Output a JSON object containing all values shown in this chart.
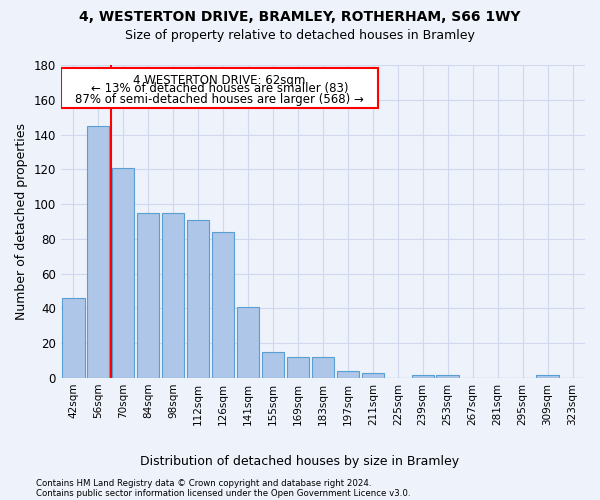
{
  "title_line1": "4, WESTERTON DRIVE, BRAMLEY, ROTHERHAM, S66 1WY",
  "title_line2": "Size of property relative to detached houses in Bramley",
  "xlabel": "Distribution of detached houses by size in Bramley",
  "ylabel": "Number of detached properties",
  "bar_color": "#aec6e8",
  "bar_edge_color": "#5a9fd4",
  "categories": [
    "42sqm",
    "56sqm",
    "70sqm",
    "84sqm",
    "98sqm",
    "112sqm",
    "126sqm",
    "141sqm",
    "155sqm",
    "169sqm",
    "183sqm",
    "197sqm",
    "211sqm",
    "225sqm",
    "239sqm",
    "253sqm",
    "267sqm",
    "281sqm",
    "295sqm",
    "309sqm",
    "323sqm"
  ],
  "values": [
    46,
    145,
    121,
    95,
    95,
    91,
    84,
    41,
    15,
    12,
    12,
    4,
    3,
    0,
    2,
    2,
    0,
    0,
    0,
    2,
    0
  ],
  "ylim": [
    0,
    180
  ],
  "yticks": [
    0,
    20,
    40,
    60,
    80,
    100,
    120,
    140,
    160,
    180
  ],
  "annotation_text_line1": "4 WESTERTON DRIVE: 62sqm",
  "annotation_text_line2": "← 13% of detached houses are smaller (83)",
  "annotation_text_line3": "87% of semi-detached houses are larger (568) →",
  "red_line_x": 1.5,
  "footer_line1": "Contains HM Land Registry data © Crown copyright and database right 2024.",
  "footer_line2": "Contains public sector information licensed under the Open Government Licence v3.0.",
  "background_color": "#eef2fb",
  "plot_background": "#eef2fb",
  "grid_color": "#d0d8f0",
  "figsize": [
    6.0,
    5.0
  ],
  "dpi": 100
}
